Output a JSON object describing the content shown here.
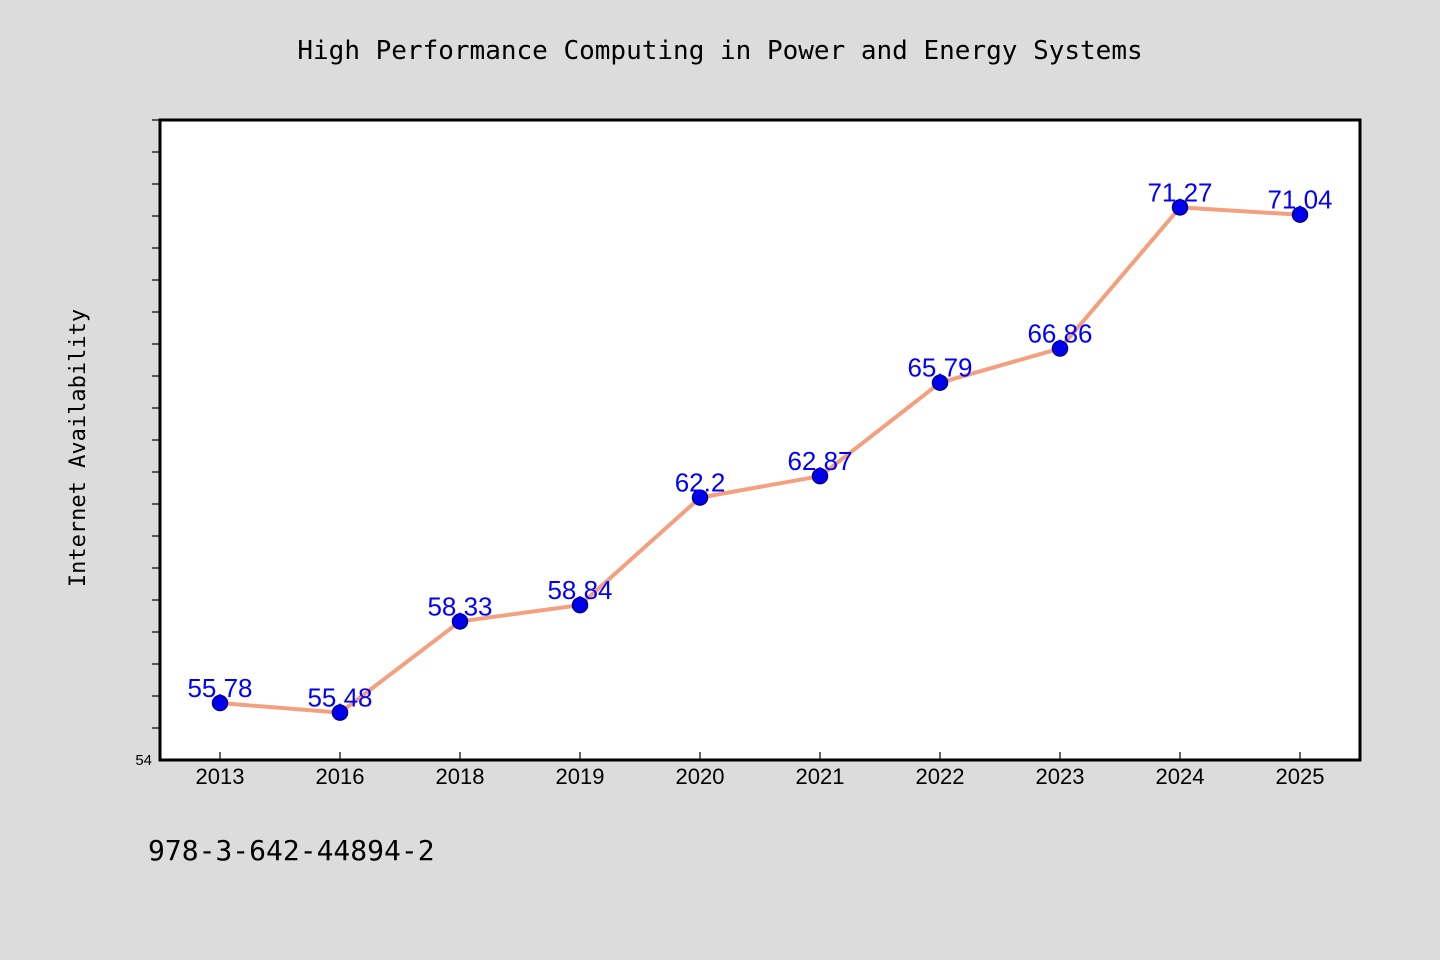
{
  "chart_data": {
    "type": "line",
    "title": "High Performance Computing in Power and Energy Systems",
    "xlabel": "",
    "ylabel": "Internet Availability",
    "categories": [
      "2013",
      "2016",
      "2018",
      "2019",
      "2020",
      "2021",
      "2022",
      "2023",
      "2024",
      "2025"
    ],
    "values": [
      55.78,
      55.48,
      58.33,
      58.84,
      62.2,
      62.87,
      65.79,
      66.86,
      71.27,
      71.04
    ],
    "data_labels": [
      "55.78",
      "55.48",
      "58.33",
      "58.84",
      "62.2",
      "62.87",
      "65.79",
      "66.86",
      "71.27",
      "71.04"
    ],
    "ylim": [
      54,
      74
    ],
    "y_tick_labels": [
      "54"
    ],
    "grid": false,
    "legend": "none",
    "colors": {
      "line": "#f4a07e",
      "marker": "#0000ee",
      "marker_edge": "#00008b",
      "label": "#0000ff",
      "background": "#dcdcdc",
      "plot_background": "#ffffff"
    }
  },
  "footer": {
    "isbn": "978-3-642-44894-2"
  }
}
